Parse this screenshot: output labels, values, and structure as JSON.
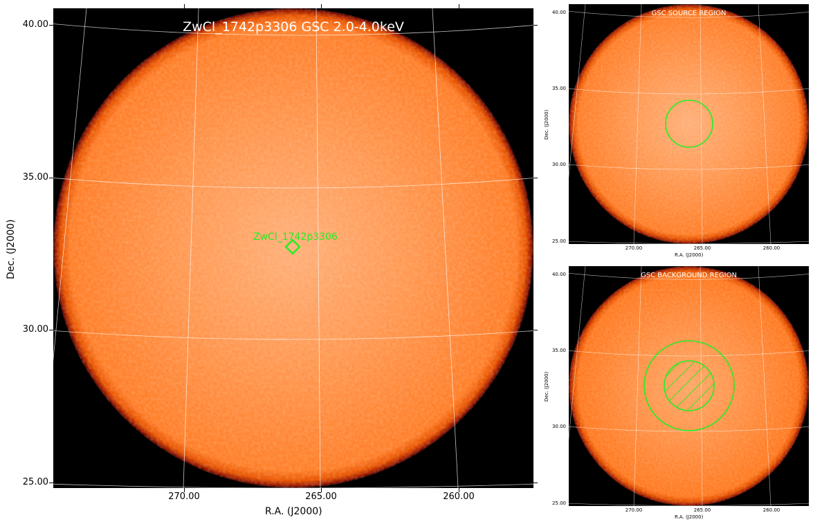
{
  "main": {
    "title": "ZwCl_1742p3306 GSC 2.0-4.0keV",
    "xlabel": "R.A. (J2000)",
    "ylabel": "Dec. (J2000)",
    "yticks": [
      "40.00",
      "35.00",
      "30.00",
      "25.00"
    ],
    "xticks": [
      "270.00",
      "265.00",
      "260.00"
    ],
    "source_label": "ZwCl_1742p3306"
  },
  "source_panel": {
    "title": "GSC SOURCE REGION",
    "xlabel": "R.A. (J2000)",
    "ylabel": "Dec. (J2000)",
    "yticks": [
      "40.00",
      "35.00",
      "30.00",
      "25.00"
    ],
    "xticks": [
      "270.00",
      "265.00",
      "260.00"
    ]
  },
  "background_panel": {
    "title": "GSC BACKGROUND REGION",
    "xlabel": "R.A. (J2000)",
    "ylabel": "Dec. (J2000)",
    "yticks": [
      "40.00",
      "35.00",
      "30.00",
      "25.00"
    ],
    "xticks": [
      "270.00",
      "265.00",
      "260.00"
    ]
  },
  "colors": {
    "image_core": "#ff9a52",
    "image_edge": "#ff6a00",
    "limb": "#b41e00",
    "region": "#22ee22",
    "grid": "#ffffff"
  }
}
